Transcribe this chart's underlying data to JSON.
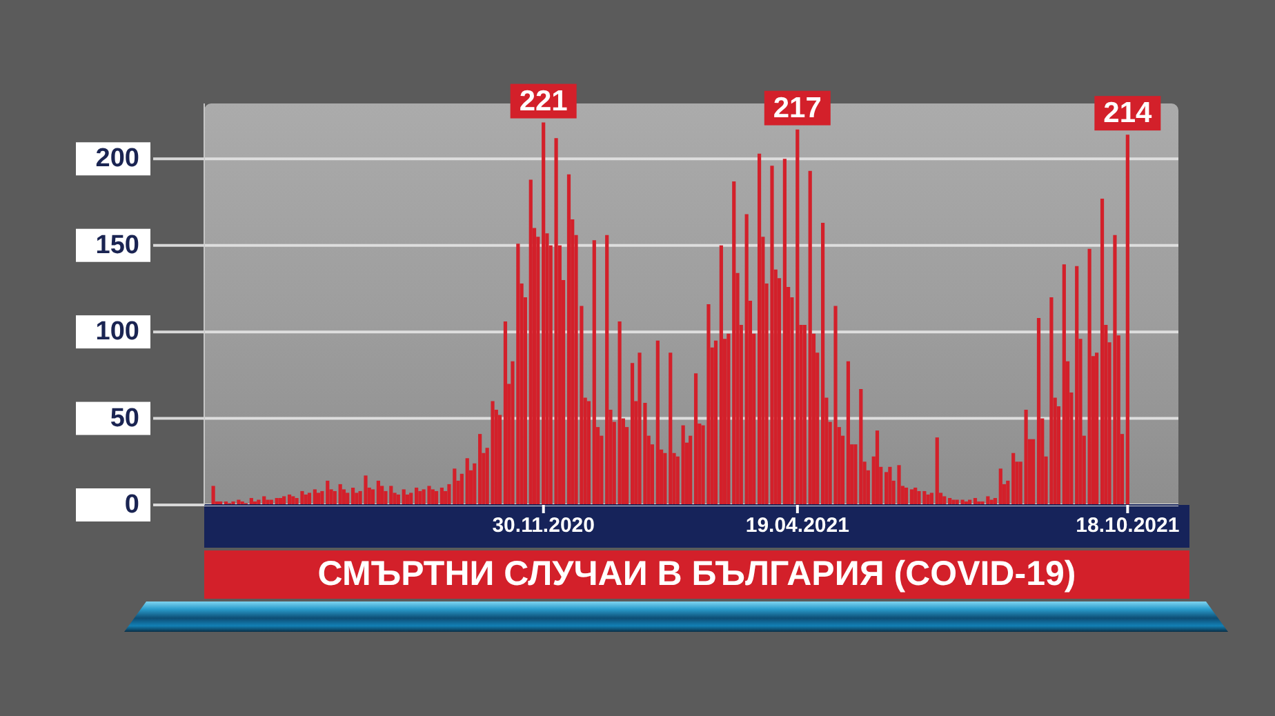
{
  "chart_data": {
    "type": "bar",
    "title": "СМЪРТНИ СЛУЧАИ В БЪЛГАРИЯ (COVID-19)",
    "color": "#d3202a",
    "x": [
      "2020-06-01",
      "2020-06-03",
      "2020-06-05",
      "2020-06-08",
      "2020-06-10",
      "2020-06-12",
      "2020-06-15",
      "2020-06-17",
      "2020-06-19",
      "2020-06-22",
      "2020-06-24",
      "2020-06-26",
      "2020-06-29",
      "2020-07-01",
      "2020-07-03",
      "2020-07-06",
      "2020-07-08",
      "2020-07-10",
      "2020-07-13",
      "2020-07-15",
      "2020-07-17",
      "2020-07-20",
      "2020-07-22",
      "2020-07-24",
      "2020-07-27",
      "2020-07-29",
      "2020-07-31",
      "2020-08-03",
      "2020-08-05",
      "2020-08-07",
      "2020-08-10",
      "2020-08-12",
      "2020-08-14",
      "2020-08-17",
      "2020-08-19",
      "2020-08-21",
      "2020-08-24",
      "2020-08-26",
      "2020-08-28",
      "2020-08-31",
      "2020-09-02",
      "2020-09-04",
      "2020-09-07",
      "2020-09-09",
      "2020-09-11",
      "2020-09-14",
      "2020-09-16",
      "2020-09-18",
      "2020-09-21",
      "2020-09-23",
      "2020-09-25",
      "2020-09-28",
      "2020-09-30",
      "2020-10-02",
      "2020-10-05",
      "2020-10-07",
      "2020-10-09",
      "2020-10-12",
      "2020-10-14",
      "2020-10-16",
      "2020-10-19",
      "2020-10-21",
      "2020-10-23",
      "2020-10-26",
      "2020-10-28",
      "2020-10-30",
      "2020-11-02",
      "2020-11-04",
      "2020-11-06",
      "2020-11-09",
      "2020-11-11",
      "2020-11-13",
      "2020-11-16",
      "2020-11-18",
      "2020-11-20",
      "2020-11-23",
      "2020-11-25",
      "2020-11-27",
      "2020-11-30",
      "2020-12-02",
      "2020-12-04",
      "2020-12-07",
      "2020-12-09",
      "2020-12-11",
      "2020-12-14",
      "2020-12-16",
      "2020-12-18",
      "2020-12-21",
      "2020-12-23",
      "2020-12-25",
      "2020-12-28",
      "2020-12-30",
      "2021-01-01",
      "2021-01-04",
      "2021-01-06",
      "2021-01-08",
      "2021-01-11",
      "2021-01-13",
      "2021-01-15",
      "2021-01-18",
      "2021-01-20",
      "2021-01-22",
      "2021-01-25",
      "2021-01-27",
      "2021-01-29",
      "2021-02-01",
      "2021-02-03",
      "2021-02-05",
      "2021-02-08",
      "2021-02-10",
      "2021-02-12",
      "2021-02-15",
      "2021-02-17",
      "2021-02-19",
      "2021-02-22",
      "2021-02-24",
      "2021-02-26",
      "2021-03-01",
      "2021-03-03",
      "2021-03-05",
      "2021-03-08",
      "2021-03-10",
      "2021-03-12",
      "2021-03-15",
      "2021-03-17",
      "2021-03-19",
      "2021-03-22",
      "2021-03-24",
      "2021-03-26",
      "2021-03-29",
      "2021-03-31",
      "2021-04-02",
      "2021-04-05",
      "2021-04-07",
      "2021-04-09",
      "2021-04-12",
      "2021-04-14",
      "2021-04-16",
      "2021-04-19",
      "2021-04-21",
      "2021-04-23",
      "2021-04-26",
      "2021-04-28",
      "2021-04-30",
      "2021-05-03",
      "2021-05-05",
      "2021-05-07",
      "2021-05-10",
      "2021-05-12",
      "2021-05-14",
      "2021-05-17",
      "2021-05-19",
      "2021-05-21",
      "2021-05-24",
      "2021-05-26",
      "2021-05-28",
      "2021-05-31",
      "2021-06-02",
      "2021-06-04",
      "2021-06-07",
      "2021-06-09",
      "2021-06-11",
      "2021-06-14",
      "2021-06-16",
      "2021-06-18",
      "2021-06-21",
      "2021-06-23",
      "2021-06-25",
      "2021-06-28",
      "2021-06-30",
      "2021-07-02",
      "2021-07-05",
      "2021-07-07",
      "2021-07-09",
      "2021-07-12",
      "2021-07-14",
      "2021-07-16",
      "2021-07-19",
      "2021-07-21",
      "2021-07-23",
      "2021-07-26",
      "2021-07-28",
      "2021-07-30",
      "2021-08-02",
      "2021-08-04",
      "2021-08-06",
      "2021-08-09",
      "2021-08-11",
      "2021-08-13",
      "2021-08-16",
      "2021-08-18",
      "2021-08-20",
      "2021-08-23",
      "2021-08-25",
      "2021-08-27",
      "2021-08-30",
      "2021-09-01",
      "2021-09-03",
      "2021-09-06",
      "2021-09-08",
      "2021-09-10",
      "2021-09-13",
      "2021-09-15",
      "2021-09-17",
      "2021-09-20",
      "2021-09-22",
      "2021-09-24",
      "2021-09-27",
      "2021-09-29",
      "2021-10-01",
      "2021-10-04",
      "2021-10-06",
      "2021-10-08",
      "2021-10-11",
      "2021-10-13",
      "2021-10-15",
      "2021-10-18"
    ],
    "values": [
      11,
      2,
      2,
      2,
      1,
      2,
      3,
      2,
      1,
      4,
      2,
      3,
      5,
      3,
      3,
      4,
      4,
      5,
      6,
      5,
      4,
      8,
      6,
      7,
      9,
      7,
      8,
      14,
      9,
      8,
      12,
      9,
      7,
      10,
      7,
      8,
      17,
      10,
      9,
      14,
      11,
      8,
      11,
      7,
      6,
      9,
      6,
      7,
      10,
      8,
      9,
      11,
      9,
      8,
      10,
      8,
      12,
      21,
      14,
      18,
      27,
      20,
      24,
      41,
      30,
      33,
      60,
      55,
      52,
      106,
      70,
      83,
      151,
      128,
      120,
      188,
      160,
      155,
      221,
      157,
      150,
      212,
      150,
      130,
      191,
      165,
      156,
      115,
      62,
      60,
      153,
      45,
      40,
      156,
      55,
      48,
      106,
      50,
      45,
      82,
      60,
      88,
      59,
      40,
      35,
      95,
      32,
      30,
      88,
      30,
      28,
      46,
      36,
      40,
      76,
      47,
      46,
      116,
      91,
      95,
      150,
      96,
      99,
      187,
      134,
      104,
      168,
      118,
      99,
      203,
      155,
      128,
      196,
      136,
      131,
      200,
      126,
      120,
      217,
      104,
      104,
      193,
      99,
      88,
      163,
      62,
      48,
      115,
      45,
      40,
      83,
      35,
      35,
      67,
      25,
      20,
      28,
      43,
      22,
      19,
      22,
      14,
      23,
      11,
      10,
      9,
      10,
      8,
      8,
      6,
      7,
      39,
      7,
      5,
      4,
      3,
      3,
      3,
      2,
      3,
      4,
      2,
      2,
      5,
      3,
      4,
      21,
      12,
      14,
      30,
      25,
      25,
      55,
      38,
      38,
      108,
      50,
      28,
      120,
      62,
      57,
      139,
      83,
      65,
      138,
      96,
      40,
      148,
      86,
      88,
      177,
      104,
      94,
      156,
      98,
      41,
      214
    ],
    "value_labels": [
      null,
      null,
      null,
      null,
      null,
      null,
      null,
      null,
      null,
      null,
      null,
      null,
      null,
      null,
      null,
      null,
      null,
      null,
      null,
      null,
      null,
      null,
      null,
      null,
      null,
      null,
      null,
      null,
      null,
      null,
      null,
      null,
      null,
      null,
      null,
      null,
      null,
      null,
      null,
      null,
      null,
      null,
      null,
      null,
      null,
      null,
      null,
      null,
      null,
      null,
      null,
      null,
      null,
      null,
      null,
      null,
      null,
      null,
      null,
      null,
      null,
      null,
      null,
      null,
      null,
      null,
      null,
      null,
      null,
      null,
      null,
      null,
      null,
      null,
      null,
      null,
      null,
      null,
      "221",
      null,
      null,
      null,
      null,
      null,
      null,
      null,
      null,
      null,
      null,
      null,
      null,
      null,
      null,
      null,
      null,
      null,
      null,
      null,
      null,
      null,
      null,
      null,
      null,
      null,
      null,
      null,
      null,
      null,
      null,
      null,
      null,
      null,
      null,
      null,
      null,
      null,
      null,
      null,
      null,
      null,
      null,
      null,
      null,
      null,
      null,
      null,
      null,
      null,
      null,
      null,
      null,
      null,
      null,
      null,
      null,
      null,
      null,
      null,
      "217",
      null,
      null,
      null,
      null,
      null,
      null,
      null,
      null,
      null,
      null,
      null,
      null,
      null,
      null,
      null,
      null,
      null,
      null,
      null,
      null,
      null,
      null,
      null,
      null,
      null,
      null,
      null,
      null,
      null,
      null,
      null,
      null,
      null,
      null,
      null,
      null,
      null,
      null,
      null,
      null,
      null,
      null,
      null,
      null,
      null,
      null,
      null,
      null,
      null,
      null,
      null,
      null,
      null,
      null,
      null,
      null,
      null,
      null,
      null,
      null,
      null,
      null,
      null,
      null,
      null,
      null,
      null,
      null,
      null,
      null,
      null,
      null,
      null,
      null,
      null,
      null,
      null,
      "214"
    ],
    "xlim": [
      "2020-05-27",
      "2021-11-15"
    ],
    "xticks": [
      {
        "value": "2020-11-30",
        "label": "30.11.2020"
      },
      {
        "value": "2021-04-19",
        "label": "19.04.2021"
      },
      {
        "value": "2021-10-18",
        "label": "18.10.2021"
      }
    ],
    "ylim": [
      0,
      232
    ],
    "yticks": [
      0,
      50,
      100,
      150,
      200
    ],
    "grid": "y"
  }
}
